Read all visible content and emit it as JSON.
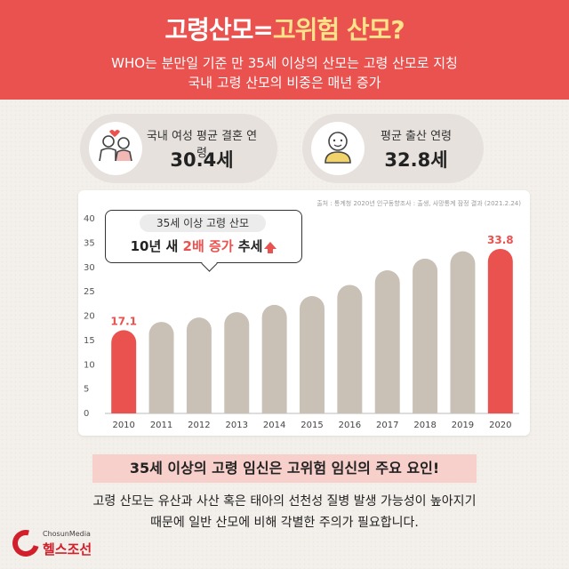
{
  "header": {
    "title_a": "고령산모=",
    "title_b": "고위험 산모?",
    "subtitle_line1": "WHO는 분만일 기준 만 35세 이상의 산모는 고령 산모로 지칭",
    "subtitle_line2": "국내 고령 산모의 비중은 매년 증가"
  },
  "stats": {
    "marriage": {
      "label": "국내 여성 평균 결혼 연령",
      "value": "30.4세",
      "icon": "couple-icon"
    },
    "birth": {
      "label": "평균 출산 연령",
      "value": "32.8세",
      "icon": "baby-icon"
    }
  },
  "chart_note": {
    "source": "출처 : 통계청 2020년 인구동향조사 : 출생, 사망통계 잠정 결과 (2021.2.24)",
    "callout_top": "35세 이상 고령 산모",
    "callout_a": "10년 새 ",
    "callout_b": "2배 증가",
    "callout_c": " 추세"
  },
  "chart_data": {
    "type": "bar",
    "categories": [
      "2010",
      "2011",
      "2012",
      "2013",
      "2014",
      "2015",
      "2016",
      "2017",
      "2018",
      "2019",
      "2020"
    ],
    "values": [
      17.1,
      18.8,
      19.7,
      20.8,
      22.3,
      24.1,
      26.4,
      29.4,
      31.8,
      33.3,
      33.8
    ],
    "labeled_values": {
      "2010": "17.1",
      "2020": "33.8"
    },
    "yticks": [
      0,
      5,
      10,
      15,
      20,
      25,
      30,
      35,
      40
    ],
    "ylim": [
      0,
      40
    ],
    "title": "",
    "xlabel": "",
    "ylabel": "",
    "grid": false,
    "colors": {
      "highlight": "#e9524f",
      "default": "#c9c0b6"
    }
  },
  "footer": {
    "banner": "35세 이상의 고령 임신은 고위험 임신의 주요 요인!",
    "body_line1": "고령 산모는 유산과 사산 혹은 태아의 선천성 질병 발생 가능성이 높아지기",
    "body_line2": "때문에 일반 산모에 비해 각별한 주의가 필요합니다.",
    "logo_top": "ChosunMedia",
    "logo_bottom": "헬스조선"
  }
}
